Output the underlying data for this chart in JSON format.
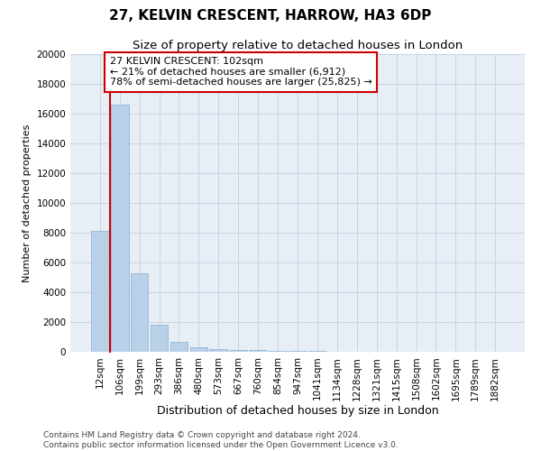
{
  "title1": "27, KELVIN CRESCENT, HARROW, HA3 6DP",
  "title2": "Size of property relative to detached houses in London",
  "xlabel": "Distribution of detached houses by size in London",
  "ylabel": "Number of detached properties",
  "categories": [
    "12sqm",
    "106sqm",
    "199sqm",
    "293sqm",
    "386sqm",
    "480sqm",
    "573sqm",
    "667sqm",
    "760sqm",
    "854sqm",
    "947sqm",
    "1041sqm",
    "1134sqm",
    "1228sqm",
    "1321sqm",
    "1415sqm",
    "1508sqm",
    "1602sqm",
    "1695sqm",
    "1789sqm",
    "1882sqm"
  ],
  "values": [
    8100,
    16600,
    5300,
    1800,
    650,
    330,
    190,
    140,
    110,
    60,
    50,
    40,
    30,
    20,
    20,
    15,
    10,
    10,
    8,
    5,
    5
  ],
  "bar_color": "#b8d0e8",
  "bar_edge_color": "#8aafd0",
  "grid_color": "#c8d4e4",
  "bg_color": "#e8eef6",
  "annotation_line1": "27 KELVIN CRESCENT: 102sqm",
  "annotation_line2": "← 21% of detached houses are smaller (6,912)",
  "annotation_line3": "78% of semi-detached houses are larger (25,825) →",
  "annotation_box_color": "#cc0000",
  "ylim": [
    0,
    20000
  ],
  "yticks": [
    0,
    2000,
    4000,
    6000,
    8000,
    10000,
    12000,
    14000,
    16000,
    18000,
    20000
  ],
  "footnote": "Contains HM Land Registry data © Crown copyright and database right 2024.\nContains public sector information licensed under the Open Government Licence v3.0.",
  "title1_fontsize": 11,
  "title2_fontsize": 9.5,
  "xlabel_fontsize": 9,
  "ylabel_fontsize": 8,
  "tick_fontsize": 7.5,
  "annotation_fontsize": 8,
  "footnote_fontsize": 6.5
}
